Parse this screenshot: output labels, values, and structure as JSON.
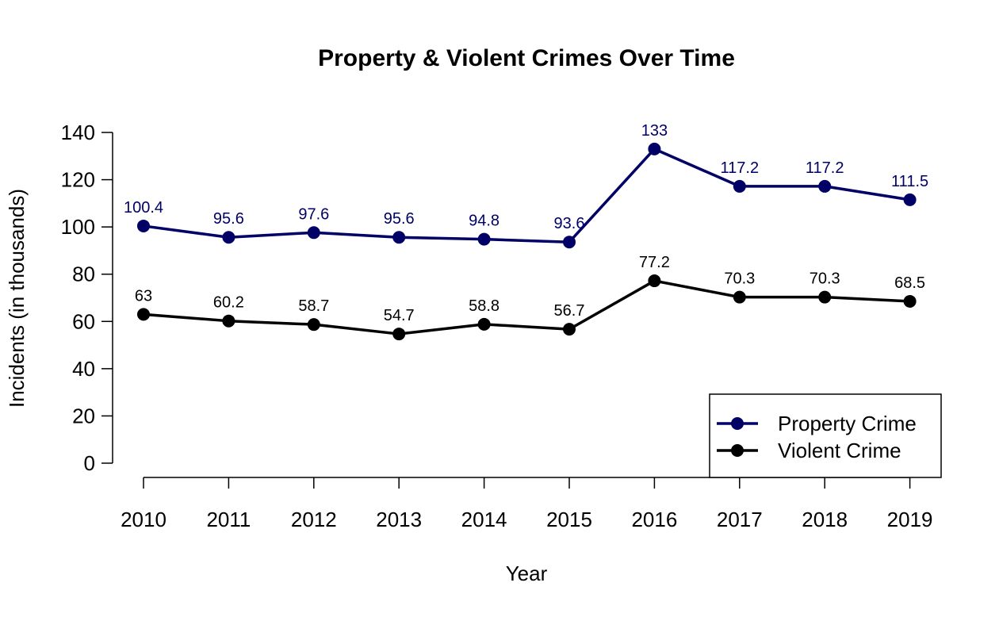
{
  "chart_data": {
    "type": "line",
    "title": "Property & Violent Crimes Over Time",
    "xlabel": "Year",
    "ylabel": "Incidents (in thousands)",
    "x": [
      "2010",
      "2011",
      "2012",
      "2013",
      "2014",
      "2015",
      "2016",
      "2017",
      "2018",
      "2019"
    ],
    "ylim": [
      0,
      140
    ],
    "yticks": [
      0,
      20,
      40,
      60,
      80,
      100,
      120,
      140
    ],
    "grid": false,
    "legend_position": "bottom-right",
    "series": [
      {
        "name": "Property Crime",
        "color": "#000066",
        "values": [
          100.4,
          95.6,
          97.6,
          95.6,
          94.8,
          93.6,
          133,
          117.2,
          117.2,
          111.5
        ],
        "labels": [
          "100.4",
          "95.6",
          "97.6",
          "95.6",
          "94.8",
          "93.6",
          "133",
          "117.2",
          "117.2",
          "111.5"
        ]
      },
      {
        "name": "Violent Crime",
        "color": "#000000",
        "values": [
          63,
          60.2,
          58.7,
          54.7,
          58.8,
          56.7,
          77.2,
          70.3,
          70.3,
          68.5
        ],
        "labels": [
          "63",
          "60.2",
          "58.7",
          "54.7",
          "58.8",
          "56.7",
          "77.2",
          "70.3",
          "70.3",
          "68.5"
        ]
      }
    ]
  }
}
